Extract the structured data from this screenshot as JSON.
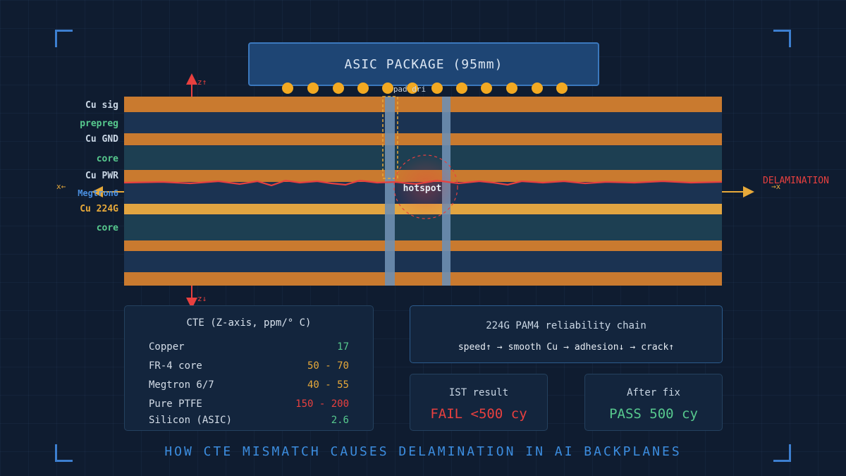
{
  "package": {
    "label": "ASIC PACKAGE (95mm)"
  },
  "bump_label": "pad dri",
  "layers": [
    {
      "name": "Cu sig",
      "color": "#c9d6e4"
    },
    {
      "name": "prepreg",
      "color": "#57c98e"
    },
    {
      "name": "Cu GND",
      "color": "#c9d6e4"
    },
    {
      "name": "core",
      "color": "#57c98e"
    },
    {
      "name": "Cu PWR",
      "color": "#c9d6e4"
    },
    {
      "name": "Megtron6",
      "color": "#4a8fe0"
    },
    {
      "name": "Cu 224G",
      "color": "#e7a93a"
    },
    {
      "name": "core",
      "color": "#57c98e"
    }
  ],
  "axis": {
    "z_up": "z↑",
    "z_down": "z↓",
    "x_left": "x←",
    "x_right": "→x"
  },
  "hotspot_label": "hotspot",
  "delamination_label": "DELAMINATION",
  "colors": {
    "copper": "#c97a2f",
    "copper_hi": "#e2a541",
    "dielectric": "#1b3352",
    "delam": "#e8403f",
    "accent": "#3c8ddf"
  },
  "cte": {
    "title": "CTE (Z-axis, ppm/° C)",
    "rows": [
      {
        "material": "Copper",
        "value": "17",
        "color": "#57c98e"
      },
      {
        "material": "FR-4 core",
        "value": "50 - 70",
        "color": "#e7a93a"
      },
      {
        "material": "Megtron 6/7",
        "value": "40 - 55",
        "color": "#e7a93a"
      },
      {
        "material": "Pure PTFE",
        "value": "150 - 200",
        "color": "#e8403f"
      },
      {
        "material": "Silicon (ASIC)",
        "value": "2.6",
        "color": "#57c98e"
      }
    ]
  },
  "chain": {
    "title": "224G PAM4 reliability chain",
    "steps": [
      "speed↑",
      "→",
      "smooth Cu",
      "→",
      "adhesion↓",
      "→",
      "crack↑"
    ]
  },
  "ist": {
    "title": "IST result",
    "value": "FAIL <500 cy",
    "color": "#e8403f"
  },
  "fix": {
    "title": "After fix",
    "value": "PASS 500 cy",
    "color": "#57c98e"
  },
  "footer": "HOW CTE MISMATCH CAUSES DELAMINATION IN AI BACKPLANES"
}
